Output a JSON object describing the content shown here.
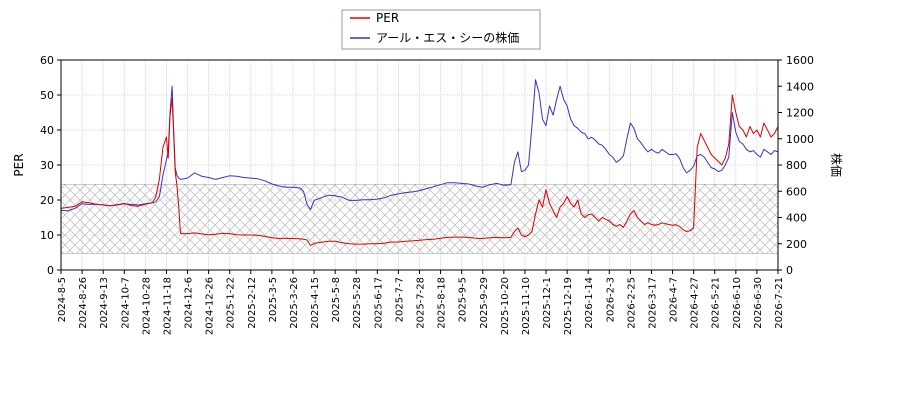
{
  "chart_data": {
    "type": "line",
    "ylabel_left": "PER",
    "ylabel_right": "株価",
    "ylim_left": [
      0,
      60
    ],
    "ylim_right": [
      0,
      1600
    ],
    "yticks_left": [
      "0",
      "10",
      "20",
      "30",
      "40",
      "50",
      "60"
    ],
    "yticks_right": [
      "0",
      "200",
      "400",
      "600",
      "800",
      "1000",
      "1200",
      "1400",
      "1600"
    ],
    "x_ticks": [
      "2024-8-5",
      "2024-8-26",
      "2024-9-13",
      "2024-10-7",
      "2024-10-28",
      "2024-11-18",
      "2024-12-6",
      "2024-12-26",
      "2025-1-22",
      "2025-2-12",
      "2025-3-5",
      "2025-3-26",
      "2025-4-15",
      "2025-5-8",
      "2025-5-28",
      "2025-6-17",
      "2025-7-7",
      "2025-7-28",
      "2025-8-18",
      "2025-9-5",
      "2025-9-29",
      "2025-10-20",
      "2025-11-10",
      "2025-12-1",
      "2025-12-19",
      "2026-1-14",
      "2026-2-3",
      "2026-2-25",
      "2026-3-17",
      "2026-4-7",
      "2026-4-27",
      "2026-5-21",
      "2026-6-10",
      "2026-6-30",
      "2026-7-21"
    ],
    "grid": true,
    "legend_placement": "top-center",
    "hatched_band_left": [
      4.7,
      24.5
    ],
    "series": [
      {
        "name": "PER",
        "axis": "left",
        "color": "#dd0000",
        "points": [
          [
            0,
            17.6
          ],
          [
            2,
            17.9
          ],
          [
            4,
            18.2
          ],
          [
            6,
            19.5
          ],
          [
            8,
            19.2
          ],
          [
            10,
            18.8
          ],
          [
            12,
            18.6
          ],
          [
            14,
            18.3
          ],
          [
            16,
            18.7
          ],
          [
            18,
            19.0
          ],
          [
            20,
            18.4
          ],
          [
            22,
            18.2
          ],
          [
            24,
            18.8
          ],
          [
            26,
            19.2
          ],
          [
            27,
            21
          ],
          [
            28,
            26
          ],
          [
            29,
            35
          ],
          [
            30,
            38
          ],
          [
            30.5,
            32
          ],
          [
            31,
            44
          ],
          [
            31.6,
            49
          ],
          [
            32,
            40
          ],
          [
            32.5,
            28
          ],
          [
            33,
            24
          ],
          [
            33.5,
            18
          ],
          [
            34,
            10.4
          ],
          [
            36,
            10.4
          ],
          [
            38,
            10.6
          ],
          [
            40,
            10.3
          ],
          [
            42,
            10.1
          ],
          [
            44,
            10.2
          ],
          [
            46,
            10.5
          ],
          [
            48,
            10.4
          ],
          [
            50,
            10.1
          ],
          [
            52,
            10.0
          ],
          [
            54,
            10.0
          ],
          [
            56,
            9.9
          ],
          [
            58,
            9.6
          ],
          [
            60,
            9.2
          ],
          [
            62,
            9.0
          ],
          [
            64,
            9.1
          ],
          [
            66,
            9.0
          ],
          [
            68,
            8.9
          ],
          [
            70,
            8.6
          ],
          [
            71,
            7.0
          ],
          [
            72,
            7.6
          ],
          [
            74,
            7.9
          ],
          [
            76,
            8.2
          ],
          [
            78,
            8.2
          ],
          [
            80,
            7.8
          ],
          [
            82,
            7.5
          ],
          [
            84,
            7.4
          ],
          [
            86,
            7.4
          ],
          [
            88,
            7.5
          ],
          [
            90,
            7.5
          ],
          [
            92,
            7.7
          ],
          [
            94,
            8.0
          ],
          [
            96,
            8.0
          ],
          [
            98,
            8.2
          ],
          [
            100,
            8.3
          ],
          [
            102,
            8.5
          ],
          [
            104,
            8.7
          ],
          [
            106,
            8.8
          ],
          [
            108,
            9.1
          ],
          [
            110,
            9.3
          ],
          [
            112,
            9.4
          ],
          [
            114,
            9.4
          ],
          [
            116,
            9.3
          ],
          [
            118,
            9.1
          ],
          [
            120,
            9.0
          ],
          [
            122,
            9.2
          ],
          [
            124,
            9.3
          ],
          [
            126,
            9.2
          ],
          [
            128,
            9.3
          ],
          [
            129,
            11
          ],
          [
            130,
            12
          ],
          [
            131,
            10
          ],
          [
            132,
            9.5
          ],
          [
            133,
            10
          ],
          [
            134,
            11
          ],
          [
            135,
            16
          ],
          [
            136,
            20
          ],
          [
            137,
            18
          ],
          [
            138,
            23
          ],
          [
            139,
            19
          ],
          [
            140,
            17
          ],
          [
            141,
            15
          ],
          [
            142,
            18
          ],
          [
            143,
            19
          ],
          [
            144,
            21
          ],
          [
            145,
            19
          ],
          [
            146,
            18
          ],
          [
            147,
            20
          ],
          [
            148,
            16
          ],
          [
            149,
            15
          ],
          [
            150,
            15.8
          ],
          [
            151,
            16
          ],
          [
            152,
            15
          ],
          [
            153,
            14
          ],
          [
            154,
            15
          ],
          [
            155,
            14.5
          ],
          [
            156,
            14
          ],
          [
            157,
            13
          ],
          [
            158,
            12.5
          ],
          [
            159,
            13
          ],
          [
            160,
            12.2
          ],
          [
            161,
            14
          ],
          [
            162,
            16
          ],
          [
            163,
            17
          ],
          [
            164,
            15
          ],
          [
            165,
            14
          ],
          [
            166,
            13
          ],
          [
            167,
            13.5
          ],
          [
            168,
            13
          ],
          [
            169,
            12.8
          ],
          [
            170,
            13
          ],
          [
            171,
            13.5
          ],
          [
            172,
            13.2
          ],
          [
            173,
            13
          ],
          [
            174,
            12.8
          ],
          [
            175,
            12.9
          ],
          [
            176,
            12.5
          ],
          [
            177,
            11.5
          ],
          [
            178,
            11
          ],
          [
            179,
            11.2
          ],
          [
            180,
            12
          ],
          [
            181,
            35
          ],
          [
            182,
            39
          ],
          [
            183,
            37
          ],
          [
            184,
            35
          ],
          [
            185,
            33
          ],
          [
            186,
            32
          ],
          [
            187,
            31
          ],
          [
            188,
            30
          ],
          [
            189,
            32
          ],
          [
            190,
            36
          ],
          [
            191,
            50
          ],
          [
            192,
            45
          ],
          [
            193,
            41
          ],
          [
            194,
            40
          ],
          [
            195,
            38
          ],
          [
            196,
            41
          ],
          [
            197,
            39
          ],
          [
            198,
            40
          ],
          [
            199,
            38
          ],
          [
            200,
            42
          ],
          [
            201,
            40
          ],
          [
            202,
            38
          ],
          [
            203,
            39
          ],
          [
            204,
            41
          ]
        ]
      },
      {
        "name": "アール・エス・シーの株価",
        "axis": "right",
        "color": "#3333cc",
        "points": [
          [
            0,
            455
          ],
          [
            2,
            450
          ],
          [
            4,
            470
          ],
          [
            6,
            505
          ],
          [
            8,
            500
          ],
          [
            10,
            500
          ],
          [
            12,
            495
          ],
          [
            14,
            490
          ],
          [
            16,
            495
          ],
          [
            18,
            505
          ],
          [
            20,
            500
          ],
          [
            22,
            495
          ],
          [
            24,
            505
          ],
          [
            26,
            512
          ],
          [
            27,
            520
          ],
          [
            28,
            560
          ],
          [
            29,
            720
          ],
          [
            30,
            840
          ],
          [
            30.5,
            900
          ],
          [
            31,
            1200
          ],
          [
            31.6,
            1400
          ],
          [
            32,
            1100
          ],
          [
            32.5,
            780
          ],
          [
            33,
            720
          ],
          [
            33.5,
            700
          ],
          [
            34,
            690
          ],
          [
            36,
            700
          ],
          [
            38,
            740
          ],
          [
            40,
            715
          ],
          [
            42,
            705
          ],
          [
            44,
            690
          ],
          [
            46,
            705
          ],
          [
            48,
            718
          ],
          [
            50,
            715
          ],
          [
            52,
            705
          ],
          [
            54,
            700
          ],
          [
            56,
            695
          ],
          [
            58,
            680
          ],
          [
            60,
            655
          ],
          [
            62,
            640
          ],
          [
            64,
            630
          ],
          [
            66,
            630
          ],
          [
            68,
            625
          ],
          [
            69,
            600
          ],
          [
            70,
            500
          ],
          [
            71,
            460
          ],
          [
            72,
            530
          ],
          [
            74,
            550
          ],
          [
            76,
            570
          ],
          [
            78,
            565
          ],
          [
            80,
            555
          ],
          [
            82,
            530
          ],
          [
            84,
            530
          ],
          [
            86,
            535
          ],
          [
            88,
            535
          ],
          [
            90,
            540
          ],
          [
            92,
            550
          ],
          [
            94,
            570
          ],
          [
            96,
            580
          ],
          [
            98,
            590
          ],
          [
            100,
            595
          ],
          [
            102,
            605
          ],
          [
            104,
            620
          ],
          [
            106,
            635
          ],
          [
            108,
            650
          ],
          [
            110,
            665
          ],
          [
            112,
            665
          ],
          [
            114,
            660
          ],
          [
            116,
            655
          ],
          [
            118,
            640
          ],
          [
            120,
            630
          ],
          [
            122,
            650
          ],
          [
            124,
            660
          ],
          [
            126,
            645
          ],
          [
            128,
            650
          ],
          [
            129,
            820
          ],
          [
            130,
            900
          ],
          [
            131,
            750
          ],
          [
            132,
            760
          ],
          [
            133,
            800
          ],
          [
            134,
            1100
          ],
          [
            135,
            1450
          ],
          [
            136,
            1350
          ],
          [
            137,
            1150
          ],
          [
            138,
            1100
          ],
          [
            139,
            1250
          ],
          [
            140,
            1180
          ],
          [
            141,
            1300
          ],
          [
            142,
            1400
          ],
          [
            143,
            1300
          ],
          [
            144,
            1250
          ],
          [
            145,
            1150
          ],
          [
            146,
            1100
          ],
          [
            147,
            1080
          ],
          [
            148,
            1050
          ],
          [
            149,
            1040
          ],
          [
            150,
            1000
          ],
          [
            151,
            1010
          ],
          [
            152,
            990
          ],
          [
            153,
            960
          ],
          [
            154,
            950
          ],
          [
            155,
            920
          ],
          [
            156,
            880
          ],
          [
            157,
            860
          ],
          [
            158,
            820
          ],
          [
            159,
            840
          ],
          [
            160,
            870
          ],
          [
            161,
            1000
          ],
          [
            162,
            1120
          ],
          [
            163,
            1080
          ],
          [
            164,
            1000
          ],
          [
            165,
            970
          ],
          [
            166,
            930
          ],
          [
            167,
            900
          ],
          [
            168,
            920
          ],
          [
            169,
            900
          ],
          [
            170,
            890
          ],
          [
            171,
            920
          ],
          [
            172,
            900
          ],
          [
            173,
            880
          ],
          [
            174,
            880
          ],
          [
            175,
            885
          ],
          [
            176,
            850
          ],
          [
            177,
            780
          ],
          [
            178,
            740
          ],
          [
            179,
            760
          ],
          [
            180,
            790
          ],
          [
            181,
            870
          ],
          [
            182,
            880
          ],
          [
            183,
            860
          ],
          [
            184,
            820
          ],
          [
            185,
            780
          ],
          [
            186,
            770
          ],
          [
            187,
            750
          ],
          [
            188,
            760
          ],
          [
            189,
            800
          ],
          [
            190,
            860
          ],
          [
            191,
            1200
          ],
          [
            192,
            1050
          ],
          [
            193,
            980
          ],
          [
            194,
            960
          ],
          [
            195,
            920
          ],
          [
            196,
            900
          ],
          [
            197,
            910
          ],
          [
            198,
            880
          ],
          [
            199,
            860
          ],
          [
            200,
            920
          ],
          [
            201,
            900
          ],
          [
            202,
            880
          ],
          [
            203,
            910
          ],
          [
            204,
            900
          ]
        ]
      }
    ]
  }
}
